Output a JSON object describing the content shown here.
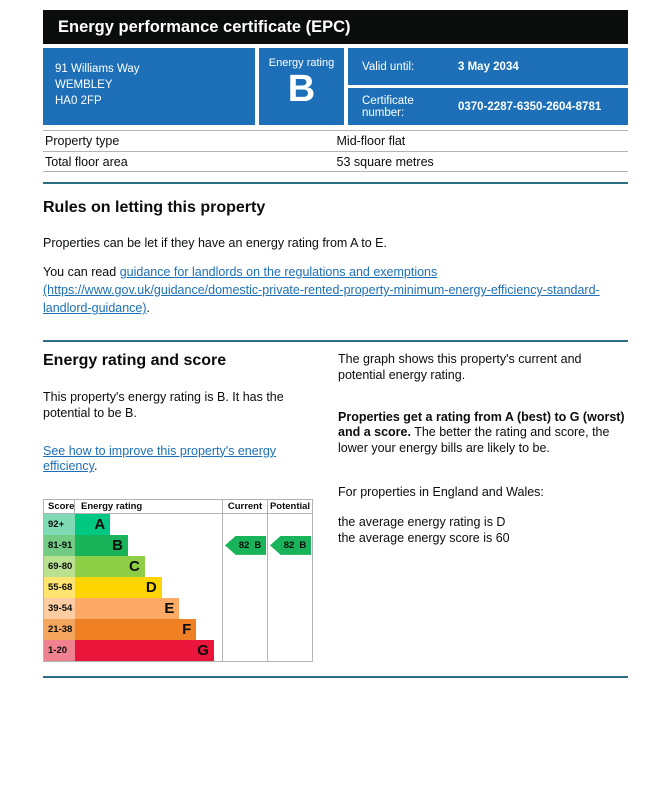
{
  "page": {
    "title": "Energy performance certificate (EPC)"
  },
  "summary": {
    "address_line1": "91 Williams Way",
    "address_line2": "WEMBLEY",
    "address_line3": "HA0 2FP",
    "energy_rating_label": "Energy rating",
    "energy_rating": "B",
    "valid_until_label": "Valid until:",
    "valid_until": "3 May 2034",
    "certificate_number_label": "Certificate number:",
    "certificate_number": "0370-2287-6350-2604-8781"
  },
  "property_facts": {
    "rows": [
      {
        "label": "Property type",
        "value": "Mid-floor flat"
      },
      {
        "label": "Total floor area",
        "value": "53 square metres"
      }
    ]
  },
  "rules_section": {
    "heading": "Rules on letting this property",
    "paragraph1": "Properties can be let if they have an energy rating from A to E.",
    "paragraph2_prefix": "You can read ",
    "link_text": "guidance for landlords on the regulations and exemptions (https://www.gov.uk/guidance/domestic-private-rented-property-minimum-energy-efficiency-standard-landlord-guidance)",
    "paragraph2_suffix": "."
  },
  "rating_section": {
    "heading": "Energy rating and score",
    "description": "This property's energy rating is B. It has the potential to be B.",
    "improve_link_text": "See how to improve this property's energy efficiency",
    "improve_link_suffix": ".",
    "right": {
      "paragraph1": "The graph shows this property's current and potential energy rating.",
      "paragraph2_bold": "Properties get a rating from A (best) to G (worst) and a score.",
      "paragraph2_rest": " The better the rating and score, the lower your energy bills are likely to be.",
      "paragraph3": "For properties in England and Wales:",
      "average_rating_line": "the average energy rating is D",
      "average_score_line": "the average energy score is 60"
    }
  },
  "chart_data": {
    "type": "bar",
    "title": "EPC energy rating graph",
    "headers": {
      "score": "Score",
      "rating": "Energy rating",
      "current": "Current",
      "potential": "Potential"
    },
    "bands": [
      {
        "score_range": "92+",
        "letter": "A",
        "color": "#00c781",
        "tint": "#7fdab6",
        "width_pct": 24
      },
      {
        "score_range": "81-91",
        "letter": "B",
        "color": "#19b459",
        "tint": "#74cb84",
        "width_pct": 36
      },
      {
        "score_range": "69-80",
        "letter": "C",
        "color": "#8dce46",
        "tint": "#b9e18f",
        "width_pct": 47.5
      },
      {
        "score_range": "55-68",
        "letter": "D",
        "color": "#ffd500",
        "tint": "#ffe470",
        "width_pct": 59
      },
      {
        "score_range": "39-54",
        "letter": "E",
        "color": "#fcaa65",
        "tint": "#fdcda1",
        "width_pct": 71
      },
      {
        "score_range": "21-38",
        "letter": "F",
        "color": "#ef8023",
        "tint": "#f4a65e",
        "width_pct": 82.5
      },
      {
        "score_range": "1-20",
        "letter": "G",
        "color": "#e9153b",
        "tint": "#f0828f",
        "width_pct": 94.5
      }
    ],
    "current": {
      "score": "82",
      "letter": "B",
      "band_index": 1,
      "arrow_color": "#19b459"
    },
    "potential": {
      "score": "82",
      "letter": "B",
      "band_index": 1,
      "arrow_color": "#19b459"
    }
  },
  "colors": {
    "brand_blue": "#1d70b8",
    "title_bar": "#0b0c0c",
    "divider_teal": "#2b6d85",
    "table_border": "#b1b4b6",
    "link_blue": "#1d70b8"
  }
}
